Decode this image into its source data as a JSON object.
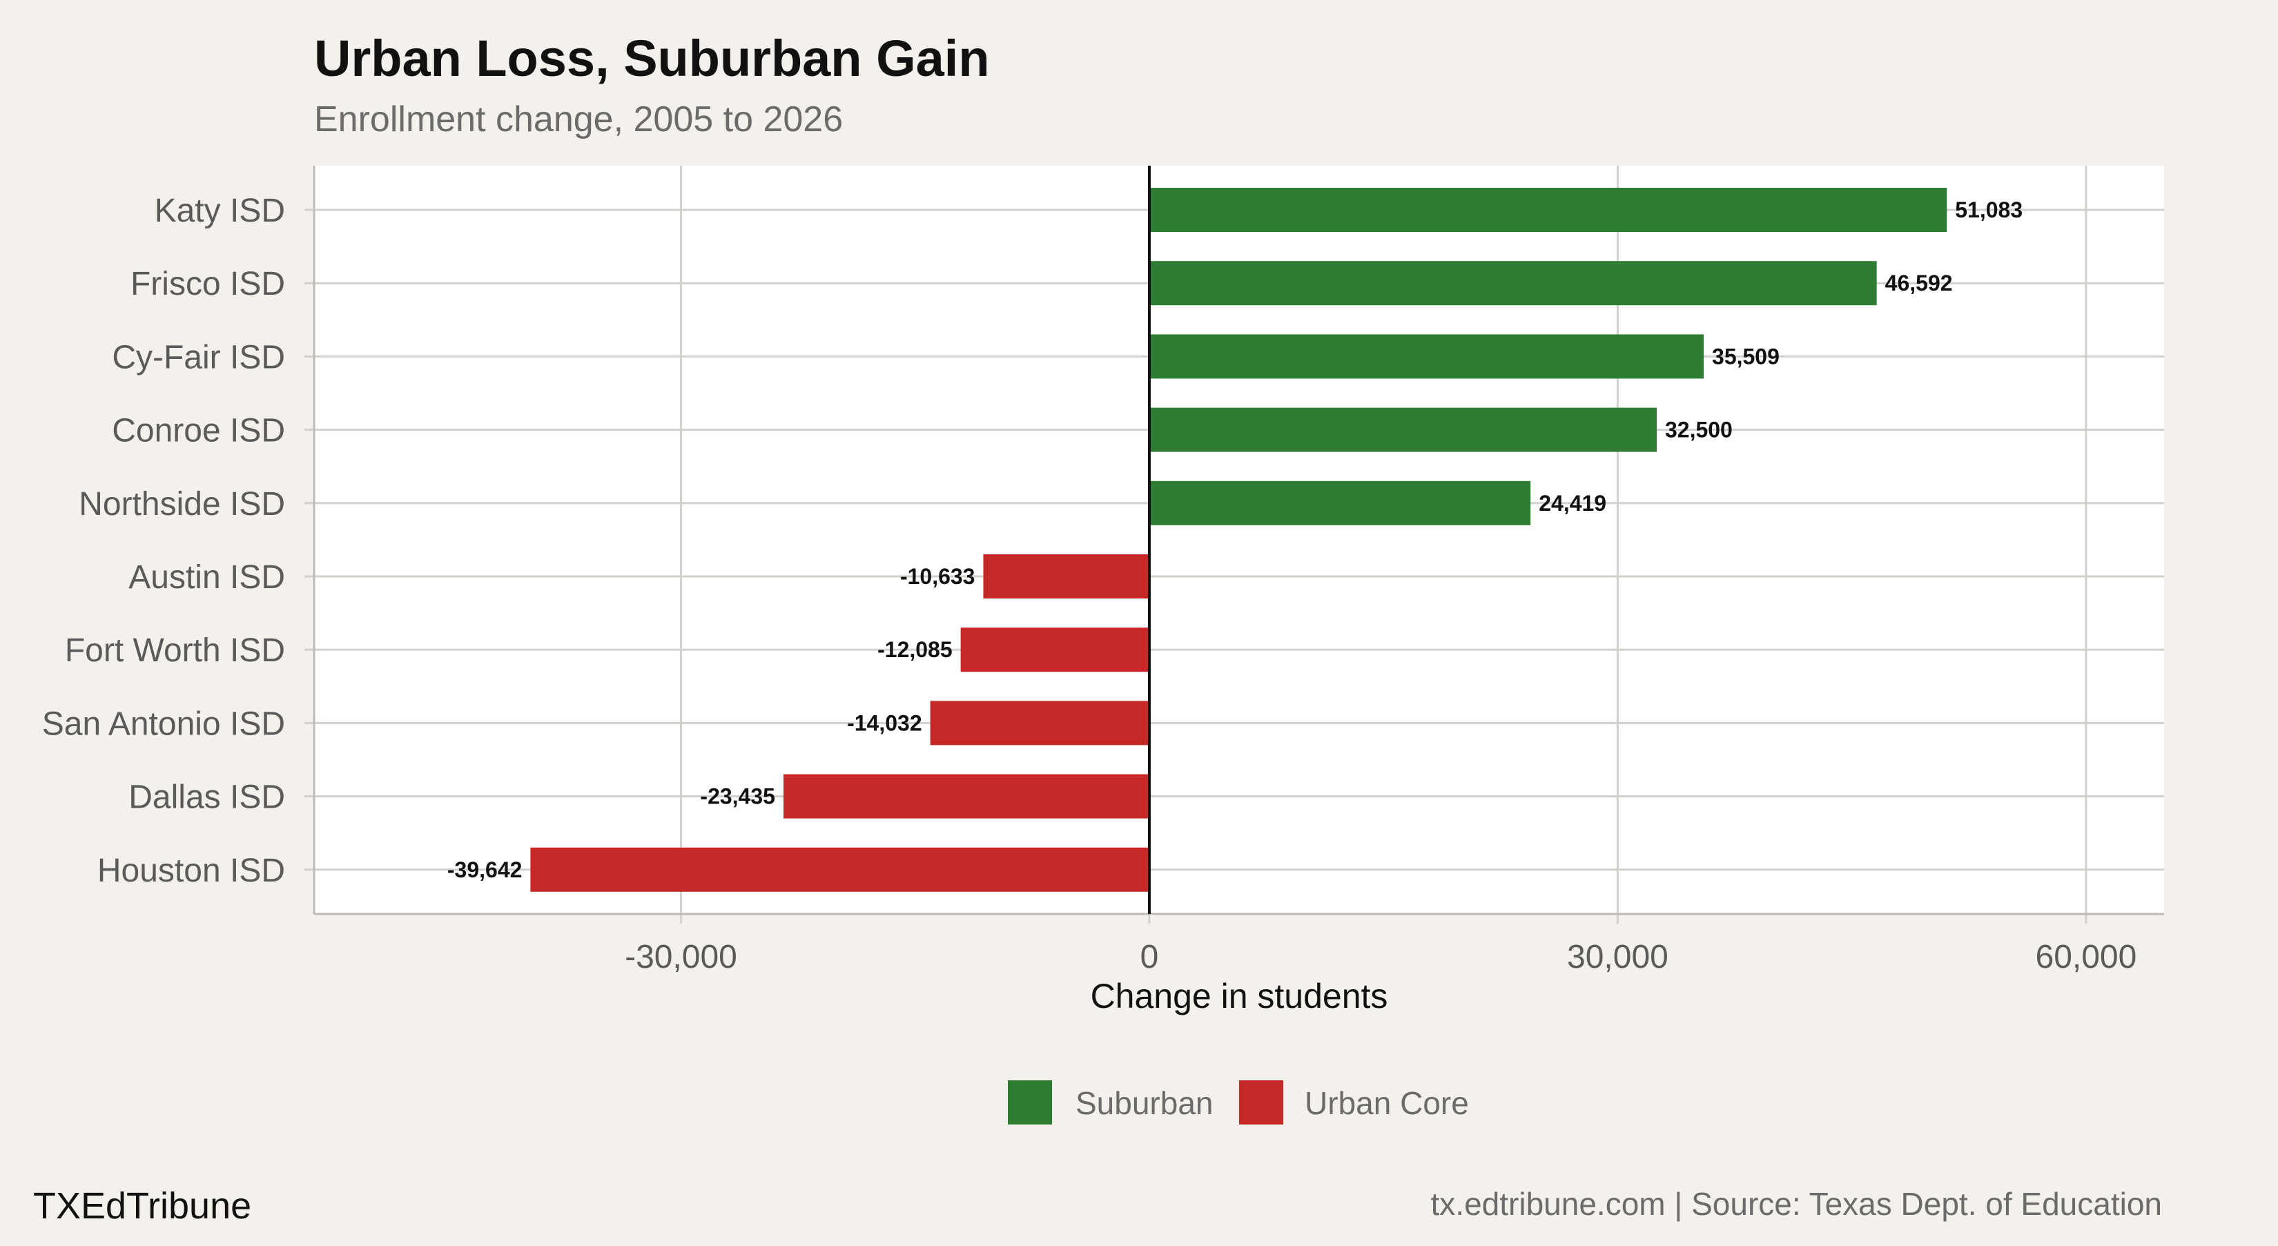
{
  "chart_data": {
    "type": "bar",
    "orientation": "horizontal",
    "title": "Urban Loss, Suburban Gain",
    "subtitle": "Enrollment change, 2005 to 2026",
    "xlabel": "Change in students",
    "ylabel": "",
    "xlim": [
      -53500,
      65000
    ],
    "xticks": [
      -30000,
      0,
      30000,
      60000
    ],
    "xtick_labels": [
      "-30,000",
      "0",
      "30,000",
      "60,000"
    ],
    "grid": true,
    "legend_position": "bottom",
    "categories": [
      "Katy ISD",
      "Frisco ISD",
      "Cy-Fair ISD",
      "Conroe ISD",
      "Northside ISD",
      "Austin ISD",
      "Fort Worth ISD",
      "San Antonio ISD",
      "Dallas ISD",
      "Houston ISD"
    ],
    "values": [
      51083,
      46592,
      35509,
      32500,
      24419,
      -10633,
      -12085,
      -14032,
      -23435,
      -39642
    ],
    "value_labels": [
      "51,083",
      "46,592",
      "35,509",
      "32,500",
      "24,419",
      "-10,633",
      "-12,085",
      "-14,032",
      "-23,435",
      "-39,642"
    ],
    "groups": [
      "Suburban",
      "Suburban",
      "Suburban",
      "Suburban",
      "Suburban",
      "Urban Core",
      "Urban Core",
      "Urban Core",
      "Urban Core",
      "Urban Core"
    ],
    "legend": [
      {
        "name": "Suburban",
        "color": "#2e7d32"
      },
      {
        "name": "Urban Core",
        "color": "#c62828"
      }
    ]
  },
  "branding": "TXEdTribune",
  "caption": "tx.edtribune.com | Source: Texas Dept. of Education",
  "colors": {
    "background": "#f4f1ec",
    "panel": "#ffffff",
    "grid": "#d2d0cb",
    "suburban": "#2e7d32",
    "urban_core": "#c62828"
  }
}
